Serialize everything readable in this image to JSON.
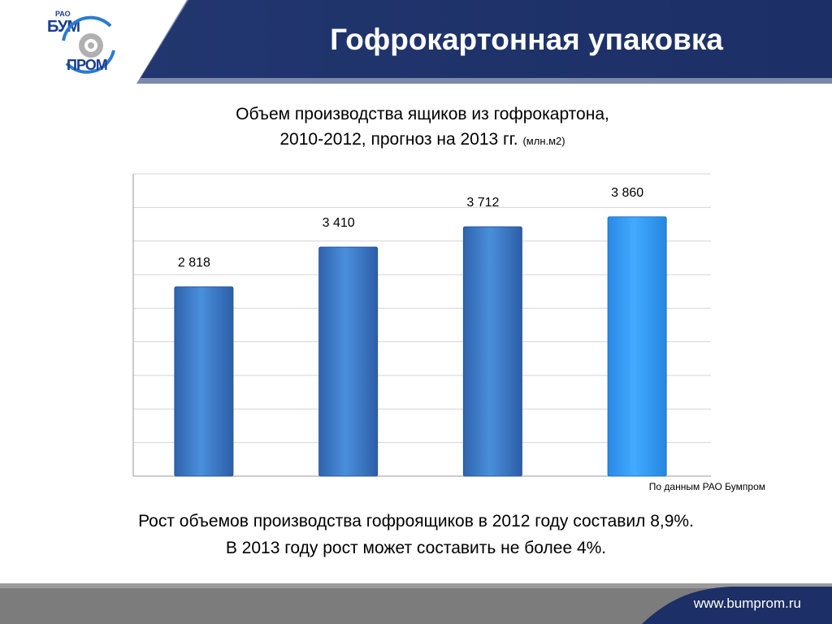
{
  "header": {
    "title": "Гофрокартонная упаковка",
    "logo": {
      "top": "РАО",
      "line1": "БУМ",
      "line2": "ПРОМ"
    }
  },
  "heading": {
    "line1": "Объем производства ящиков из гофрокартона,",
    "line2": "2010-2012, прогноз на 2013 гг.",
    "unit": "(млн.м2)"
  },
  "chart_data": {
    "type": "bar",
    "title": "Объем производства ящиков из гофрокартона, 2010-2012, прогноз на 2013 гг. (млн.м2)",
    "categories": [],
    "values": [
      2818,
      3410,
      3712,
      3860
    ],
    "labels": [
      "2 818",
      "3 410",
      "3 712",
      "3 860"
    ],
    "ylim": [
      0,
      4500
    ],
    "grid": true,
    "colors": [
      "#3b78c4",
      "#3b78c4",
      "#3b78c4",
      "#2f9bf0"
    ]
  },
  "source_note": "По данным РАО Бумпром",
  "summary": {
    "line1": "Рост объемов производства гофроящиков в 2012 году составил 8,9%.",
    "line2": "В 2013 году рост может составить не более 4%."
  },
  "footer": {
    "url": "www.bumprom.ru"
  },
  "colors": {
    "brand_navy": "#1b2f6b",
    "footer_gray": "#7a7a7a"
  }
}
